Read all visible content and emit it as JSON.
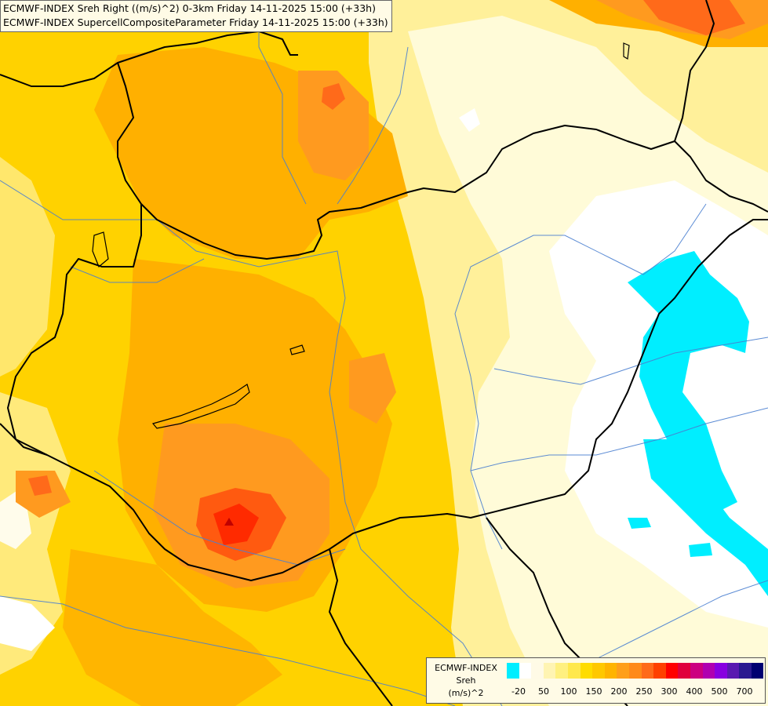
{
  "header": {
    "line1": "ECMWF-INDEX Sreh Right ((m/s)^2) 0-3km Friday 14-11-2025 15:00 (+33h)",
    "line2": "ECMWF-INDEX SupercellCompositeParameter Friday 14-11-2025 15:00 (+33h)"
  },
  "legend": {
    "title": "ECMWF-INDEX",
    "variable": "Sreh",
    "unit": "(m/s)^2",
    "colors": [
      "#00eeff",
      "#ffffff",
      "#fffae6",
      "#fff4b3",
      "#fff080",
      "#ffe84d",
      "#ffdc00",
      "#ffc800",
      "#ffb400",
      "#ff9f1a",
      "#ff8a1a",
      "#ff6a1a",
      "#ff4000",
      "#ff0000",
      "#e0003c",
      "#cc0080",
      "#b000b0",
      "#8800e0",
      "#5a1ab0",
      "#2a1a90",
      "#000070"
    ],
    "tick_labels": [
      "-20",
      "50",
      "100",
      "150",
      "200",
      "250",
      "300",
      "400",
      "500",
      "700"
    ]
  },
  "map": {
    "colors": {
      "background": "#ffd200",
      "light": "#fff09a",
      "pale": "#fffbd8",
      "white": "#ffffff",
      "cyan": "#00eeff",
      "orange": "#ffb000",
      "deep_orange": "#ff9a1f",
      "red_orange": "#ff5a10",
      "red": "#ff2a00",
      "river": "#4a7fd0",
      "border": "#000000"
    }
  }
}
